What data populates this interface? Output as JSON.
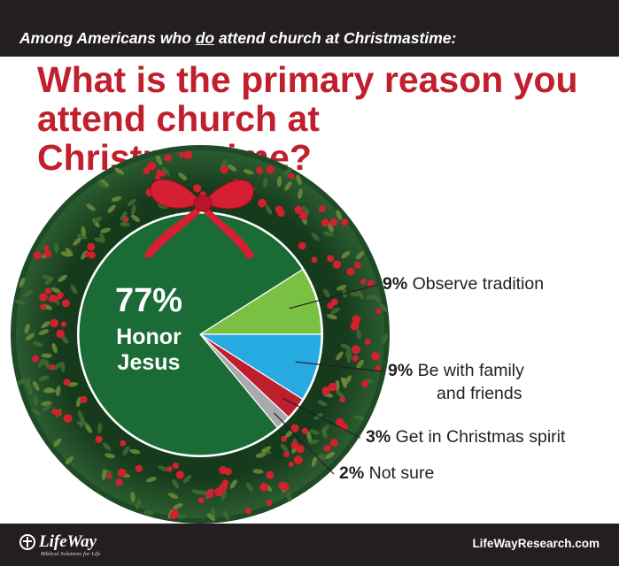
{
  "header": {
    "subtitle_before": "Among Americans who ",
    "subtitle_emph": "do",
    "subtitle_after": " attend church at Christmastime:",
    "title": "What is the primary reason you attend church at Christmastime?"
  },
  "chart_data": {
    "type": "pie",
    "title": "What is the primary reason you attend church at Christmastime?",
    "subtitle": "Among Americans who do attend church at Christmastime:",
    "slices": [
      {
        "label": "Honor Jesus",
        "value": 77,
        "display": "77%",
        "color": "#1a6b35"
      },
      {
        "label": "Observe tradition",
        "value": 9,
        "display": "9%",
        "color": "#7ac143"
      },
      {
        "label": "Be with family and friends",
        "label_lines": [
          "Be with family",
          "and friends"
        ],
        "value": 9,
        "display": "9%",
        "color": "#27aae1"
      },
      {
        "label": "Get in Christmas spirit",
        "value": 3,
        "display": "3%",
        "color": "#be1e2d"
      },
      {
        "label": "Not sure",
        "value": 2,
        "display": "2%",
        "color": "#a7a9ac"
      }
    ]
  },
  "colors": {
    "bar": "#231f20",
    "title": "#c0202e",
    "wreath": "#1f4a26",
    "berry": "#d3202f",
    "bow": "#d71f33"
  },
  "icons": {
    "logo": "lifeway-cross-logo-icon",
    "bow": "red-bow-icon",
    "wreath": "christmas-wreath-icon"
  },
  "footer": {
    "logo_text": "LifeWay",
    "logo_tagline": "Biblical Solutions for Life",
    "site": "LifeWayResearch.com"
  }
}
